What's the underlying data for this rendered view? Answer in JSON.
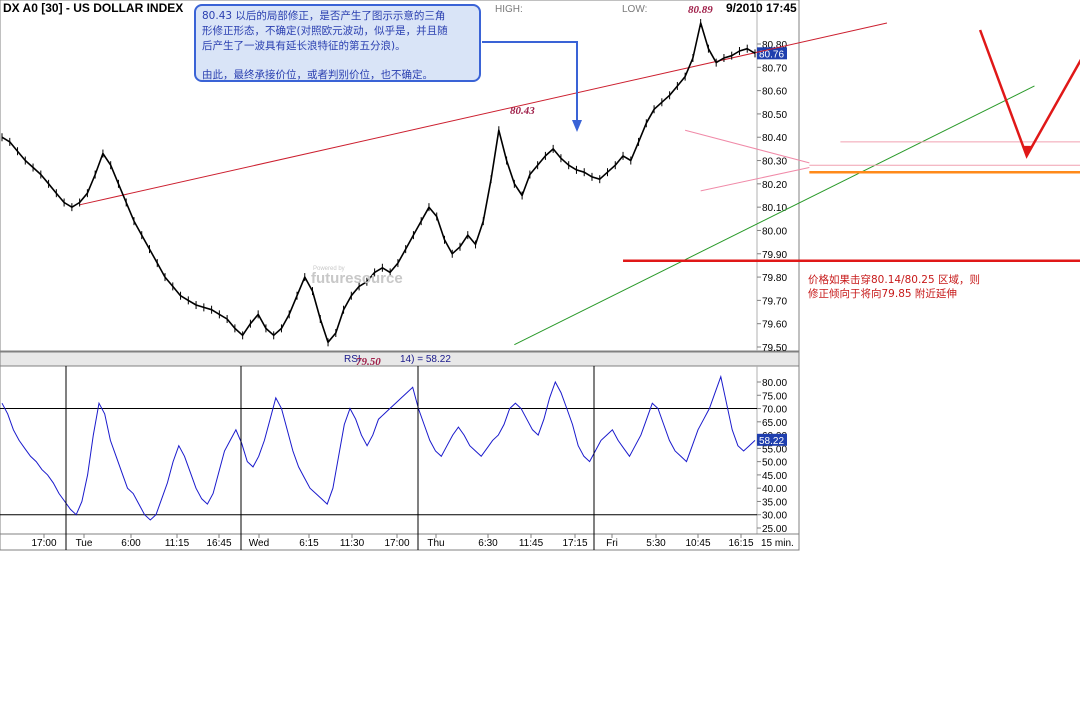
{
  "chart_data": [
    {
      "type": "line",
      "title": "DX A0 [30] - US DOLLAR INDEX",
      "header_high_label": "HIGH:",
      "header_low_label": "LOW:",
      "header_date": "9/2010 17:45",
      "ylim": [
        79.5,
        80.9
      ],
      "y_ticks": [
        "80.80",
        "80.70",
        "80.60",
        "80.50",
        "80.40",
        "80.30",
        "80.20",
        "80.10",
        "80.00",
        "79.90",
        "79.80",
        "79.70",
        "79.60",
        "79.50"
      ],
      "last_price": "80.76",
      "grid": false,
      "x_ticks": [
        "17:00",
        "Tue",
        "6:00",
        "11:15",
        "16:45",
        "Wed",
        "6:15",
        "11:30",
        "17:00",
        "Thu",
        "6:30",
        "11:45",
        "17:15",
        "Fri",
        "5:30",
        "10:45",
        "16:15"
      ],
      "x_unit": "15 min.",
      "series": [
        {
          "values": [
            80.4,
            80.38,
            80.34,
            80.3,
            80.27,
            80.24,
            80.2,
            80.16,
            80.12,
            80.1,
            80.12,
            80.16,
            80.24,
            80.33,
            80.28,
            80.2,
            80.12,
            80.04,
            79.98,
            79.92,
            79.86,
            79.8,
            79.76,
            79.72,
            79.7,
            79.68,
            79.67,
            79.66,
            79.64,
            79.62,
            79.58,
            79.55,
            79.6,
            79.64,
            79.58,
            79.55,
            79.58,
            79.64,
            79.72,
            79.8,
            79.74,
            79.62,
            79.52,
            79.56,
            79.66,
            79.72,
            79.76,
            79.78,
            79.82,
            79.84,
            79.82,
            79.86,
            79.92,
            79.98,
            80.04,
            80.1,
            80.06,
            79.96,
            79.9,
            79.93,
            79.98,
            79.94,
            80.04,
            80.22,
            80.43,
            80.3,
            80.2,
            80.15,
            80.24,
            80.28,
            80.32,
            80.35,
            80.31,
            80.28,
            80.26,
            80.25,
            80.23,
            80.22,
            80.25,
            80.28,
            80.32,
            80.3,
            80.38,
            80.46,
            80.52,
            80.55,
            80.58,
            80.62,
            80.66,
            80.74,
            80.89,
            80.78,
            80.72,
            80.74,
            80.75,
            80.77,
            80.78,
            80.76
          ]
        }
      ],
      "annotations": {
        "peak_high": "80.89",
        "peak_mid": "80.43",
        "low_label": "79.50",
        "lines": [
          {
            "name": "upper-channel",
            "color": "#cc1f2f",
            "from": [
              10,
              80.11
            ],
            "to": [
              114,
              80.89
            ]
          },
          {
            "name": "lower-channel",
            "color": "#2a9a2a",
            "from": [
              66,
              79.51
            ],
            "to": [
              133,
              80.62
            ]
          },
          {
            "name": "triangle-upper",
            "color": "#f08aa8",
            "from": [
              88,
              80.43
            ],
            "to": [
              104,
              80.29
            ]
          },
          {
            "name": "triangle-lower",
            "color": "#f08aa8",
            "from": [
              90,
              80.17
            ],
            "to": [
              104,
              80.27
            ]
          },
          {
            "name": "support-orange",
            "color": "#ff8a1a",
            "from": [
              104,
              80.25
            ],
            "to": [
              150,
              80.25
            ]
          },
          {
            "name": "support-red",
            "color": "#e01818",
            "from": [
              80,
              79.87
            ],
            "to": [
              160,
              79.87
            ]
          },
          {
            "name": "resist-pink",
            "color": "#f0a0b0",
            "from": [
              108,
              80.38
            ],
            "to": [
              140,
              80.38
            ]
          },
          {
            "name": "mid-pink",
            "color": "#f0a0b0",
            "from": [
              104,
              80.28
            ],
            "to": [
              140,
              80.28
            ]
          }
        ],
        "projection": {
          "color": "#e01818",
          "points": [
            [
              126,
              80.86
            ],
            [
              132,
              80.32
            ],
            [
              142,
              80.91
            ],
            [
              149,
              80.28
            ]
          ]
        }
      }
    },
    {
      "type": "line",
      "title": "RSI",
      "readout": "14) = 58.22",
      "last_value": "58.22",
      "ylim": [
        25,
        85
      ],
      "y_ticks": [
        "80.00",
        "75.00",
        "70.00",
        "65.00",
        "60.00",
        "55.00",
        "50.00",
        "45.00",
        "40.00",
        "35.00",
        "30.00",
        "25.00"
      ],
      "reference_lines": [
        70,
        30
      ],
      "series": [
        {
          "values": [
            72,
            68,
            62,
            58,
            55,
            52,
            50,
            47,
            45,
            42,
            38,
            35,
            32,
            30,
            35,
            45,
            60,
            72,
            68,
            58,
            52,
            46,
            40,
            38,
            34,
            30,
            28,
            30,
            36,
            42,
            50,
            56,
            52,
            46,
            40,
            36,
            34,
            38,
            46,
            54,
            58,
            62,
            57,
            50,
            48,
            52,
            58,
            66,
            74,
            70,
            62,
            54,
            48,
            44,
            40,
            38,
            36,
            34,
            40,
            52,
            64,
            70,
            66,
            60,
            56,
            60,
            66,
            68,
            70,
            72,
            74,
            76,
            78,
            70,
            64,
            58,
            54,
            52,
            56,
            60,
            63,
            60,
            56,
            54,
            52,
            55,
            58,
            60,
            64,
            70,
            72,
            70,
            66,
            62,
            60,
            66,
            74,
            80,
            76,
            70,
            64,
            56,
            52,
            50,
            54,
            58,
            60,
            62,
            58,
            55,
            52,
            56,
            60,
            66,
            72,
            70,
            64,
            58,
            54,
            52,
            50,
            56,
            62,
            66,
            70,
            76,
            82,
            72,
            62,
            56,
            54,
            56,
            58
          ]
        }
      ]
    }
  ],
  "annotation_box": {
    "line1": "80.43 以后的局部修正，是否产生了图示示意的三角",
    "line2": "形修正形态，不确定(对照欧元波动，似乎是，并且随",
    "line3": "后产生了一波具有延长浪特征的第五分浪)。",
    "line4": "由此，最终承接价位，或者判别价位，也不确定。"
  },
  "right_note": {
    "line1": "价格如果击穿80.14/80.25 区域，则",
    "line2": "修正倾向于将向79.85 附近延伸"
  },
  "watermark": {
    "small": "Powered by",
    "big": "futuresource"
  },
  "colors": {
    "price": "#000000",
    "rsi": "#1a1acc",
    "annotation_border": "#3a63d6",
    "annotation_fill": "#d9e4f7",
    "annotation_text": "#2a3fb0",
    "note_red": "#c71a1a",
    "peak_label": "#a0204a"
  }
}
